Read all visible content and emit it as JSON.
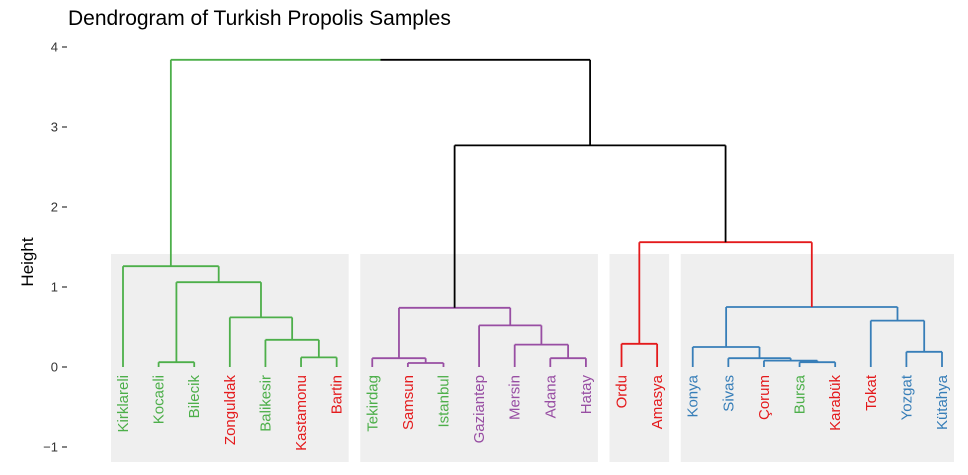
{
  "chart_data": {
    "type": "dendrogram",
    "title": "Dendrogram of Turkish Propolis Samples",
    "ylabel": "Height",
    "ylim": [
      -1.15,
      4.15
    ],
    "yticks": [
      -1,
      0,
      1,
      2,
      3,
      4
    ],
    "ytick_labels": [
      "−1",
      "0",
      "1",
      "2",
      "3",
      "4"
    ],
    "grid": false,
    "label_colors": {
      "green": "#4daf4a",
      "red": "#e41a1c",
      "purple": "#984ea3",
      "blue": "#377eb8",
      "black": "#000000"
    },
    "leaves": [
      {
        "label": "Kirklareli",
        "color": "green"
      },
      {
        "label": "Kocaeli",
        "color": "green"
      },
      {
        "label": "Bilecik",
        "color": "green"
      },
      {
        "label": "Zonguldak",
        "color": "red"
      },
      {
        "label": "Balikesir",
        "color": "green"
      },
      {
        "label": "Kastamonu",
        "color": "red"
      },
      {
        "label": "Bartin",
        "color": "red"
      },
      {
        "label": "Tekirdag",
        "color": "green"
      },
      {
        "label": "Samsun",
        "color": "red"
      },
      {
        "label": "Istanbul",
        "color": "green"
      },
      {
        "label": "Gaziantep",
        "color": "purple"
      },
      {
        "label": "Mersin",
        "color": "purple"
      },
      {
        "label": "Adana",
        "color": "purple"
      },
      {
        "label": "Hatay",
        "color": "purple"
      },
      {
        "label": "Ordu",
        "color": "red"
      },
      {
        "label": "Amasya",
        "color": "red"
      },
      {
        "label": "Konya",
        "color": "blue"
      },
      {
        "label": "Sivas",
        "color": "blue"
      },
      {
        "label": "Çorum",
        "color": "red"
      },
      {
        "label": "Bursa",
        "color": "green"
      },
      {
        "label": "Karabük",
        "color": "red"
      },
      {
        "label": "Tokat",
        "color": "red"
      },
      {
        "label": "Yozgat",
        "color": "blue"
      },
      {
        "label": "Kütahya",
        "color": "blue"
      }
    ],
    "merges": [
      {
        "left": 1,
        "right": 2,
        "height": 0.06,
        "color": "green"
      },
      {
        "left": 5,
        "right": 6,
        "height": 0.12,
        "color": "green"
      },
      {
        "left": 4,
        "right": -2,
        "height": 0.34,
        "color": "green"
      },
      {
        "left": 3,
        "right": -3,
        "height": 0.62,
        "color": "green"
      },
      {
        "left": -1,
        "right": -4,
        "height": 1.06,
        "color": "green"
      },
      {
        "left": 0,
        "right": -5,
        "height": 1.26,
        "color": "green"
      },
      {
        "left": 8,
        "right": 9,
        "height": 0.05,
        "color": "purple"
      },
      {
        "left": 7,
        "right": -7,
        "height": 0.11,
        "color": "purple"
      },
      {
        "left": 12,
        "right": 13,
        "height": 0.11,
        "color": "purple"
      },
      {
        "left": 11,
        "right": -9,
        "height": 0.28,
        "color": "purple"
      },
      {
        "left": 10,
        "right": -10,
        "height": 0.52,
        "color": "purple"
      },
      {
        "left": -8,
        "right": -11,
        "height": 0.74,
        "color": "purple"
      },
      {
        "left": 14,
        "right": 15,
        "height": 0.29,
        "color": "red"
      },
      {
        "left": 19,
        "right": 20,
        "height": 0.06,
        "color": "blue"
      },
      {
        "left": 18,
        "right": -14,
        "height": 0.08,
        "color": "blue"
      },
      {
        "left": 17,
        "right": -15,
        "height": 0.11,
        "color": "blue"
      },
      {
        "left": 16,
        "right": -16,
        "height": 0.25,
        "color": "blue"
      },
      {
        "left": 22,
        "right": 23,
        "height": 0.19,
        "color": "blue"
      },
      {
        "left": 21,
        "right": -18,
        "height": 0.58,
        "color": "blue"
      },
      {
        "left": -17,
        "right": -19,
        "height": 0.75,
        "color": "blue"
      },
      {
        "left": -13,
        "right": -20,
        "height": 1.56,
        "color": "red"
      },
      {
        "left": -12,
        "right": -21,
        "height": 2.77,
        "color": "black"
      },
      {
        "left": -6,
        "right": -22,
        "height": 3.84,
        "color": "black",
        "left_color": "green"
      }
    ],
    "cluster_boxes": [
      {
        "from": 0,
        "to": 6,
        "color": "green"
      },
      {
        "from": 7,
        "to": 13,
        "color": "purple"
      },
      {
        "from": 14,
        "to": 15,
        "color": "red"
      },
      {
        "from": 16,
        "to": 23,
        "color": "blue"
      }
    ],
    "box_fill": "#efefef"
  }
}
